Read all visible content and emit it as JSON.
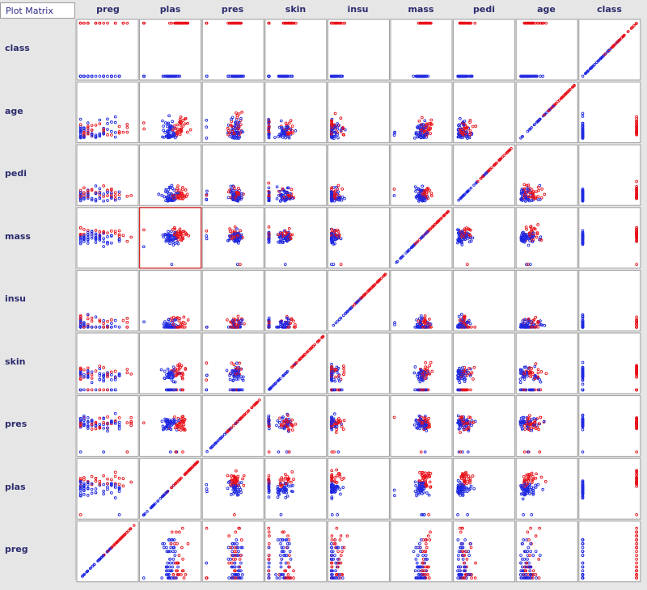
{
  "window": {
    "title": "Plot Matrix"
  },
  "attributes": [
    "preg",
    "plas",
    "pres",
    "skin",
    "insu",
    "mass",
    "pedi",
    "age",
    "class"
  ],
  "rows": [
    "class",
    "age",
    "pedi",
    "mass",
    "insu",
    "skin",
    "pres",
    "plas",
    "preg"
  ],
  "selected_cell": {
    "row": "mass",
    "col": "plas"
  },
  "colors": {
    "class0": "#1f28e0",
    "class1": "#e8131b",
    "selected_border": "#d42a2a"
  }
}
